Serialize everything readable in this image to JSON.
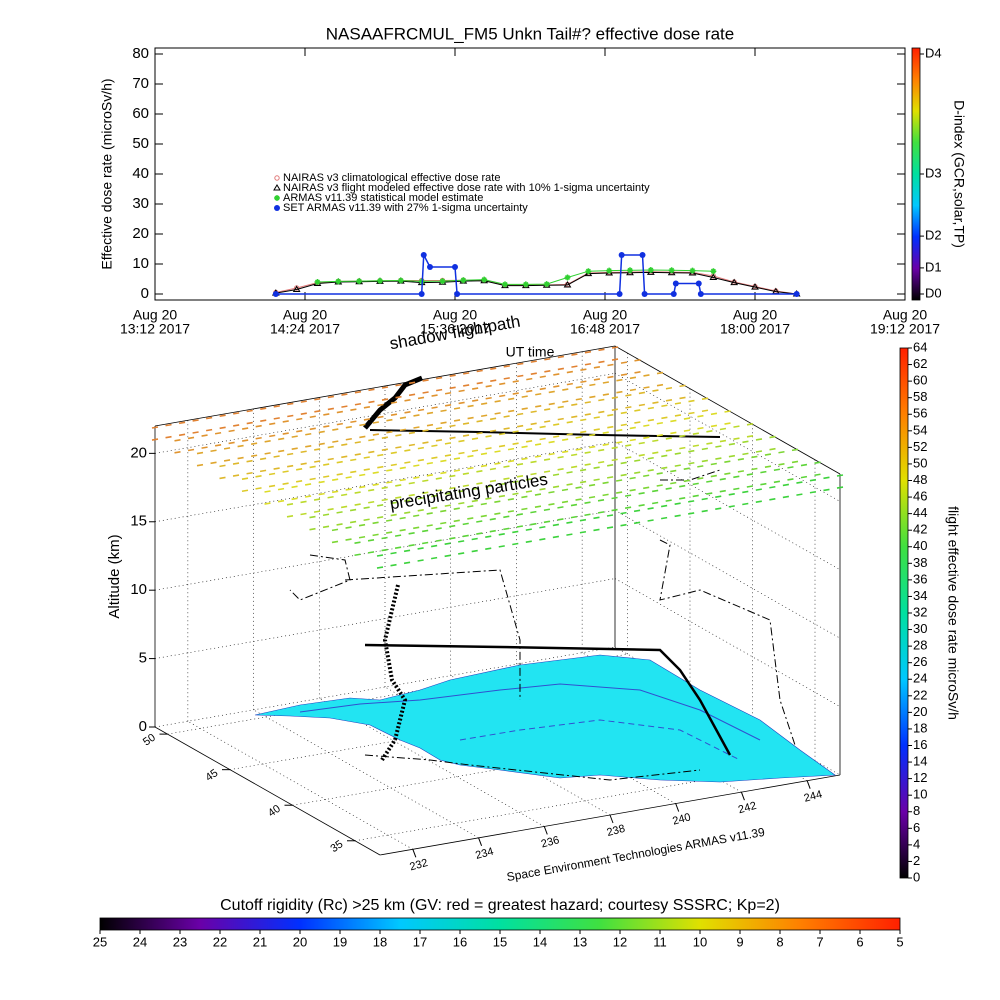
{
  "chart_data": [
    {
      "type": "line",
      "title": "NASAAFRCMUL_FM5 Unkn Tail#? effective dose rate",
      "y_label": "Effective dose rate (microSv/h)",
      "x_label": "UT time",
      "xlim": [
        "13:12",
        "19:12"
      ],
      "xticks": [
        {
          "value": "13:12",
          "label": [
            "Aug 20",
            "13:12 2017"
          ]
        },
        {
          "value": "14:24",
          "label": [
            "Aug 20",
            "14:24 2017"
          ]
        },
        {
          "value": "15:36",
          "label": [
            "Aug 20",
            "15:36 2017"
          ]
        },
        {
          "value": "16:48",
          "label": [
            "Aug 20",
            "16:48 2017"
          ]
        },
        {
          "value": "18:00",
          "label": [
            "Aug 20",
            "18:00 2017"
          ]
        },
        {
          "value": "19:12",
          "label": [
            "Aug 20",
            "19:12 2017"
          ]
        }
      ],
      "ylim": [
        -2,
        82
      ],
      "yticks": [
        0,
        10,
        20,
        30,
        40,
        50,
        60,
        70,
        80
      ],
      "series": [
        {
          "name": "NAIRAS v3 climatological effective dose rate",
          "color": "#e07878",
          "marker": "circle",
          "x": [
            "14:10",
            "14:20",
            "14:30",
            "14:40",
            "14:50",
            "15:00",
            "15:10",
            "15:20",
            "15:30",
            "15:40",
            "15:50",
            "16:00",
            "16:10",
            "16:20",
            "16:30",
            "16:40",
            "16:50",
            "17:00",
            "17:10",
            "17:20",
            "17:30",
            "17:40",
            "17:50",
            "18:00",
            "18:10",
            "18:20"
          ],
          "values": [
            0.5,
            2,
            3.8,
            4.2,
            4.3,
            4.4,
            4.5,
            4.5,
            4.5,
            4.6,
            4.6,
            3,
            3,
            3,
            3.2,
            7,
            7.2,
            7.3,
            7.4,
            7.3,
            7.2,
            6,
            4,
            2.5,
            1,
            0
          ]
        },
        {
          "name": "NAIRAS v3 flight modeled effective dose rate with 10% 1-sigma uncertainty",
          "color": "#000000",
          "marker": "triangle",
          "x": [
            "14:10",
            "14:20",
            "14:30",
            "14:40",
            "14:50",
            "15:00",
            "15:10",
            "15:20",
            "15:30",
            "15:40",
            "15:50",
            "16:00",
            "16:10",
            "16:20",
            "16:30",
            "16:40",
            "16:50",
            "17:00",
            "17:10",
            "17:20",
            "17:30",
            "17:40",
            "17:50",
            "18:00",
            "18:10",
            "18:20"
          ],
          "values": [
            0.3,
            1.5,
            3.5,
            4,
            4.1,
            4.2,
            4.3,
            3.8,
            3.9,
            4.3,
            4.4,
            2.8,
            2.8,
            2.9,
            3,
            6.8,
            7,
            7.1,
            7.2,
            7.1,
            7,
            5.5,
            3.8,
            2.3,
            0.8,
            0
          ]
        },
        {
          "name": "ARMAS v11.39 statistical model estimate",
          "color": "#30d030",
          "marker": "star",
          "x": [
            "14:30",
            "14:40",
            "14:50",
            "15:00",
            "15:10",
            "15:20",
            "15:30",
            "15:40",
            "15:50",
            "16:00",
            "16:10",
            "16:20",
            "16:30",
            "16:40",
            "16:50",
            "17:00",
            "17:10",
            "17:20",
            "17:30",
            "17:40"
          ],
          "values": [
            4,
            4.2,
            4.3,
            4.4,
            4.5,
            4.2,
            4.3,
            4.6,
            4.8,
            3.2,
            3.2,
            3.3,
            5.5,
            7.6,
            7.8,
            7.9,
            8,
            7.9,
            7.8,
            7.6
          ]
        },
        {
          "name": "SET ARMAS v11.39 with 27% 1-sigma uncertainty",
          "color": "#1030e0",
          "marker": "dot",
          "x": [
            "14:10",
            "15:20",
            "15:21",
            "15:24",
            "15:36",
            "15:37",
            "16:55",
            "16:56",
            "17:06",
            "17:07",
            "17:21",
            "17:22",
            "17:33",
            "17:34",
            "18:20"
          ],
          "values": [
            0,
            0,
            13,
            9,
            9,
            0,
            0,
            13,
            13,
            0,
            0,
            3.5,
            3.5,
            0,
            0
          ]
        }
      ]
    },
    {
      "type": "colorbar",
      "orientation": "vertical",
      "label": "D-index (GCR,solar,TP)",
      "lim": [
        -2,
        82
      ],
      "ticks": [
        {
          "value": 0,
          "label": "D0"
        },
        {
          "value": 8.7,
          "label": "D1"
        },
        {
          "value": 19.3,
          "label": "D2"
        },
        {
          "value": 40,
          "label": "D3"
        },
        {
          "value": 80,
          "label": "D4"
        }
      ],
      "colors": [
        "#000000",
        "#6a00a8",
        "#0030ff",
        "#00c8ff",
        "#00e0a0",
        "#40e040",
        "#e0e000",
        "#ff8000",
        "#ff2000"
      ]
    },
    {
      "type": "scene3d",
      "z_label": "Altitude (km)",
      "lonlim": [
        231,
        245
      ],
      "latlim": [
        33,
        51
      ],
      "altlim": [
        0,
        22
      ],
      "alt_ticks": [
        0,
        5,
        10,
        15,
        20
      ],
      "lat_ticks": [
        35,
        40,
        45,
        50
      ],
      "lon_ticks": [
        232,
        234,
        236,
        238,
        240,
        242,
        244
      ],
      "annotations": [
        "shadow flightpath",
        "precipitating particles",
        "Space Environment Technologies ARMAS v11.39"
      ],
      "map_color": "#22e4f2"
    },
    {
      "type": "colorbar",
      "orientation": "vertical",
      "label": "flight effective dose rate microSv/h",
      "lim": [
        0,
        64
      ],
      "ticks": [
        0,
        2,
        4,
        6,
        8,
        10,
        12,
        14,
        16,
        18,
        20,
        22,
        24,
        26,
        28,
        30,
        32,
        34,
        36,
        38,
        40,
        42,
        44,
        46,
        48,
        50,
        52,
        54,
        56,
        58,
        60,
        62,
        64
      ],
      "colors": [
        "#000000",
        "#6a00a8",
        "#0030ff",
        "#00c8ff",
        "#00e0a0",
        "#40e040",
        "#e0e000",
        "#ff8000",
        "#ff2000"
      ]
    },
    {
      "type": "colorbar",
      "orientation": "horizontal",
      "label": "Cutoff rigidity (Rc) >25 km (GV: red = greatest hazard; courtesy SSSRC; Kp=2)",
      "lim": [
        25,
        5
      ],
      "ticks": [
        25,
        24,
        23,
        22,
        21,
        20,
        19,
        18,
        17,
        16,
        15,
        14,
        13,
        12,
        11,
        10,
        9,
        8,
        7,
        6,
        5
      ],
      "colors": [
        "#000000",
        "#6a00a8",
        "#0030ff",
        "#00c8ff",
        "#00e0a0",
        "#40e040",
        "#e0e000",
        "#ff8000",
        "#ff2000"
      ]
    }
  ]
}
